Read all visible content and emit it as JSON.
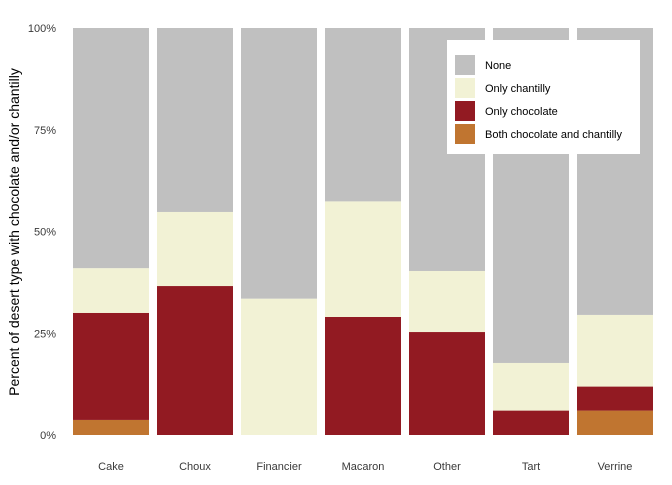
{
  "chart_data": {
    "type": "bar",
    "stacked": true,
    "categories": [
      "Cake",
      "Choux",
      "Financier",
      "Macaron",
      "Other",
      "Tart",
      "Verrine"
    ],
    "series": [
      {
        "name": "Both chocolate and chantilly",
        "color": "#c07530",
        "values": [
          3.7,
          0,
          0,
          0,
          0,
          0,
          6.0
        ]
      },
      {
        "name": "Only chocolate",
        "color": "#921a22",
        "values": [
          26.3,
          36.6,
          0,
          29.0,
          25.3,
          6.0,
          5.9
        ]
      },
      {
        "name": "Only chantilly",
        "color": "#f2f2d5",
        "values": [
          11.0,
          18.2,
          33.5,
          28.4,
          15.0,
          11.7,
          17.6
        ]
      },
      {
        "name": "None",
        "color": "#c0c0c0",
        "values": [
          59.0,
          45.2,
          66.5,
          42.6,
          59.7,
          82.3,
          70.5
        ]
      }
    ],
    "legend_order": [
      "None",
      "Only chantilly",
      "Only chocolate",
      "Both chocolate and chantilly"
    ],
    "ylabel": "Percent of desert type with chocolate and/or chantilly",
    "xlabel": "",
    "ylim": [
      0,
      100
    ],
    "yticks": [
      "0%",
      "25%",
      "50%",
      "75%",
      "100%"
    ],
    "grid": false,
    "legend_position": "top-right"
  }
}
